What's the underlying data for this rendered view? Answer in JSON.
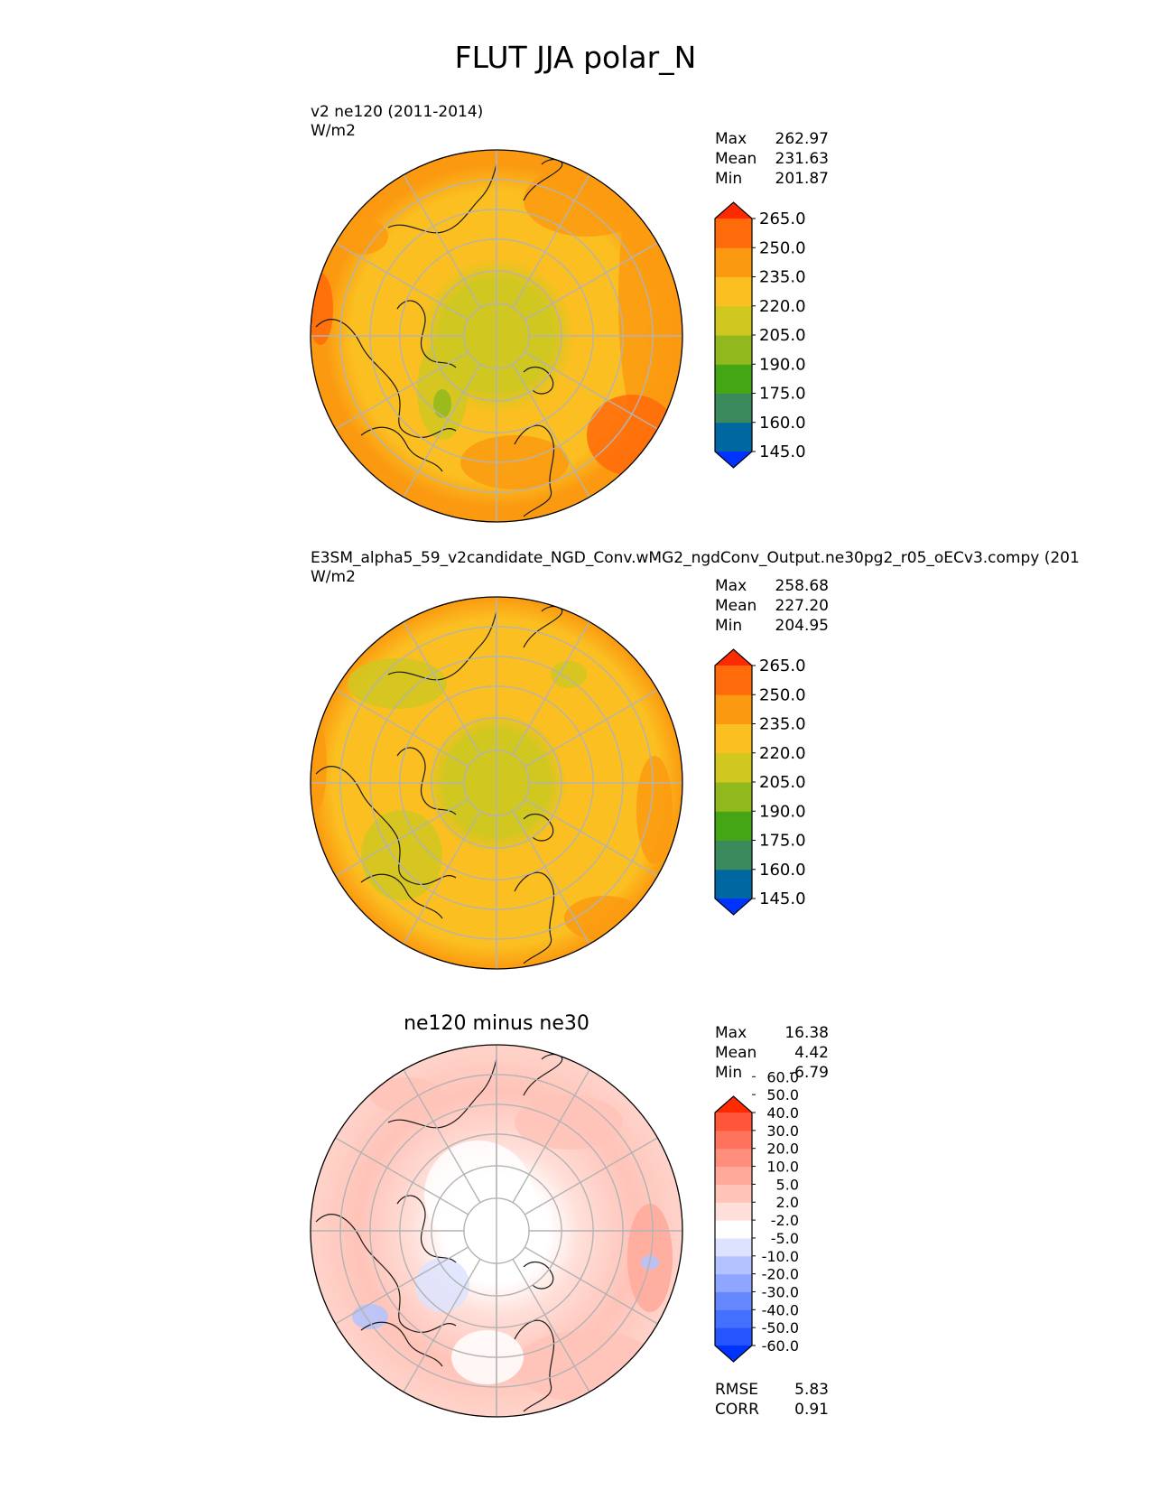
{
  "figure": {
    "title": "FLUT JJA polar_N"
  },
  "panels": [
    {
      "label_line1": "v2 ne120 (2011-2014)",
      "label_line2": "W/m2",
      "stats": [
        {
          "label": "Max",
          "value": "262.97"
        },
        {
          "label": "Mean",
          "value": "231.63"
        },
        {
          "label": "Min",
          "value": "201.87"
        }
      ]
    },
    {
      "label_line1": "E3SM_alpha5_59_v2candidate_NGD_Conv.wMG2_ngdConv_Output.ne30pg2_r05_oECv3.compy (201",
      "label_line2": "W/m2",
      "stats": [
        {
          "label": "Max",
          "value": "258.68"
        },
        {
          "label": "Mean",
          "value": "227.20"
        },
        {
          "label": "Min",
          "value": "204.95"
        }
      ]
    },
    {
      "title": "ne120 minus ne30",
      "stats": [
        {
          "label": "Max",
          "value": "16.38"
        },
        {
          "label": "Mean",
          "value": "4.42"
        },
        {
          "label": "Min",
          "value": "-6.79"
        }
      ],
      "metrics": [
        {
          "label": "RMSE",
          "value": "5.83"
        },
        {
          "label": "CORR",
          "value": "0.91"
        }
      ]
    }
  ],
  "colors": {
    "field": [
      "#0033ff",
      "#0067a0",
      "#3a8a5d",
      "#44a615",
      "#91b81c",
      "#d0c721",
      "#fbbf21",
      "#fb9a10",
      "#ff6a0a",
      "#ff2a00"
    ],
    "diff": [
      "#0033ff",
      "#2455ff",
      "#4470ff",
      "#6688ff",
      "#8ea6ff",
      "#b3c3ff",
      "#dde3ff",
      "#ffffff",
      "#ffdfd9",
      "#ffc3b8",
      "#ffa99a",
      "#ff8f7c",
      "#ff735c",
      "#ff5538",
      "#ff2a00"
    ],
    "land_outline": "#1a1a1a",
    "grid": "#b3b3b3"
  },
  "chart_data": [
    {
      "type": "heatmap",
      "projection": "north polar stereographic",
      "title": "v2 ne120 (2011-2014)",
      "units": "W/m2",
      "season": "JJA",
      "variable": "FLUT",
      "colorbar": {
        "levels": [
          145.0,
          160.0,
          175.0,
          190.0,
          205.0,
          220.0,
          235.0,
          250.0,
          265.0
        ],
        "extend": "both"
      },
      "max": 262.97,
      "mean": 231.63,
      "min": 201.87
    },
    {
      "type": "heatmap",
      "projection": "north polar stereographic",
      "title": "E3SM_alpha5_59_v2candidate_NGD_Conv.wMG2_ngdConv_Output.ne30pg2_r05_oECv3.compy (201",
      "units": "W/m2",
      "season": "JJA",
      "variable": "FLUT",
      "colorbar": {
        "levels": [
          145.0,
          160.0,
          175.0,
          190.0,
          205.0,
          220.0,
          235.0,
          250.0,
          265.0
        ],
        "extend": "both"
      },
      "max": 258.68,
      "mean": 227.2,
      "min": 204.95
    },
    {
      "type": "heatmap",
      "projection": "north polar stereographic",
      "title": "ne120 minus ne30",
      "colorbar": {
        "levels": [
          -60.0,
          -50.0,
          -40.0,
          -30.0,
          -20.0,
          -10.0,
          -5.0,
          -2.0,
          2.0,
          5.0,
          10.0,
          20.0,
          30.0,
          40.0,
          50.0,
          60.0
        ],
        "extend": "both"
      },
      "max": 16.38,
      "mean": 4.42,
      "min": -6.79,
      "rmse": 5.83,
      "corr": 0.91
    }
  ]
}
